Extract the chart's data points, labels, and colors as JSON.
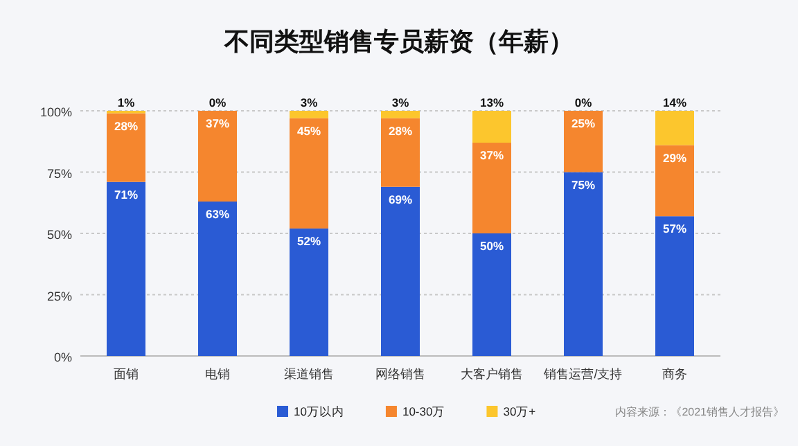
{
  "chart_data": {
    "type": "bar",
    "title": "不同类型销售专员薪资（年薪）",
    "categories": [
      "面销",
      "电销",
      "渠道销售",
      "网络销售",
      "大客户销售",
      "销售运营/支持",
      "商务"
    ],
    "stacked": true,
    "series": [
      {
        "name": "10万以内",
        "color": "#2a5bd4",
        "values": [
          71,
          63,
          52,
          69,
          50,
          75,
          57
        ],
        "value_labels": [
          "71%",
          "63%",
          "52%",
          "69%",
          "50%",
          "75%",
          "57%"
        ]
      },
      {
        "name": "10-30万",
        "color": "#f5862e",
        "values": [
          28,
          37,
          45,
          28,
          37,
          25,
          29
        ],
        "value_labels": [
          "28%",
          "37%",
          "45%",
          "28%",
          "37%",
          "25%",
          "29%"
        ]
      },
      {
        "name": "30万+",
        "color": "#fcc62d",
        "values": [
          1,
          0,
          3,
          3,
          13,
          0,
          14
        ],
        "value_labels": [
          "1%",
          "0%",
          "3%",
          "3%",
          "13%",
          "0%",
          "14%"
        ]
      }
    ],
    "ylim": [
      0,
      100
    ],
    "yticks": [
      {
        "value": 0,
        "label": "0%"
      },
      {
        "value": 25,
        "label": "25%"
      },
      {
        "value": 50,
        "label": "50%"
      },
      {
        "value": 75,
        "label": "75%"
      },
      {
        "value": 100,
        "label": "100%"
      }
    ],
    "grid": "y",
    "legend": "bottom",
    "annotations": [
      "内容来源：《2021销售人才报告》"
    ]
  }
}
